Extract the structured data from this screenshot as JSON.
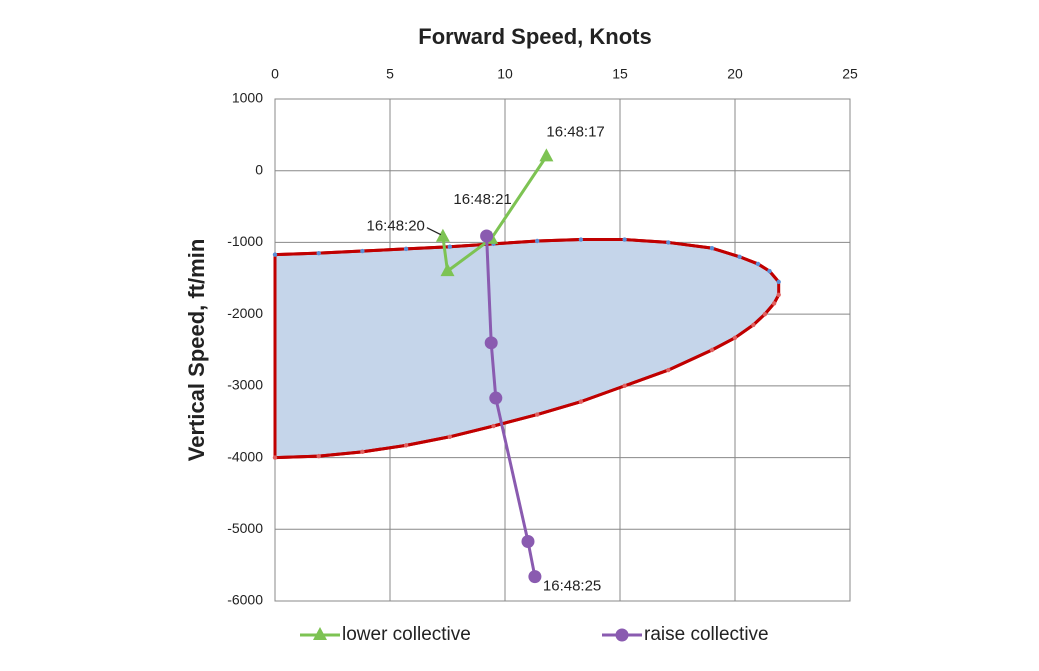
{
  "chart_data": {
    "type": "line",
    "title": "Forward Speed, Knots",
    "y_label": "Vertical Speed, ft/min",
    "xlim": [
      0,
      25
    ],
    "xticks": [
      0,
      5,
      10,
      15,
      20,
      25
    ],
    "ylim": [
      -6000,
      1000
    ],
    "yticks": [
      1000,
      0,
      -1000,
      -2000,
      -3000,
      -4000,
      -5000,
      -6000
    ],
    "grid": true,
    "x_axis_position": "top",
    "legend": "bottom",
    "envelope_fill": "#c5d5ea",
    "series": [
      {
        "color": "#c00000",
        "marker": "dot",
        "marker_color": "#5b8fd6",
        "x": [
          0,
          1.9,
          3.8,
          5.7,
          7.6,
          9.5,
          11.4,
          13.3,
          15.2,
          17.1,
          19,
          20.2,
          21,
          21.5,
          21.9
        ],
        "values": [
          -1170,
          -1150,
          -1120,
          -1090,
          -1060,
          -1020,
          -980,
          -960,
          -960,
          -1000,
          -1080,
          -1200,
          -1300,
          -1400,
          -1550
        ]
      },
      {
        "color": "#c00000",
        "marker": "dot",
        "marker_color": "#e06060",
        "x": [
          0,
          1.9,
          3.8,
          5.7,
          7.6,
          9.5,
          11.4,
          13.3,
          15.2,
          17.1,
          19,
          20,
          20.8,
          21.3,
          21.7,
          21.9
        ],
        "values": [
          -4000,
          -3980,
          -3920,
          -3830,
          -3710,
          -3560,
          -3400,
          -3220,
          -3000,
          -2780,
          -2500,
          -2330,
          -2150,
          -2000,
          -1850,
          -1730
        ]
      },
      {
        "name": "lower collective",
        "color": "#7dc353",
        "marker": "triangle",
        "x": [
          11.8,
          9.4,
          7.5,
          7.3
        ],
        "values": [
          200,
          -950,
          -1400,
          -920
        ],
        "point_labels": [
          "16:48:17",
          null,
          null,
          "16:48:20"
        ]
      },
      {
        "name": "raise collective",
        "color": "#8a5bb0",
        "marker": "circle",
        "x": [
          9.2,
          9.4,
          9.6,
          11.0,
          11.3
        ],
        "values": [
          -910,
          -2400,
          -3170,
          -5170,
          -5660
        ],
        "point_labels": [
          "16:48:21",
          null,
          null,
          null,
          "16:48:25"
        ]
      }
    ]
  }
}
